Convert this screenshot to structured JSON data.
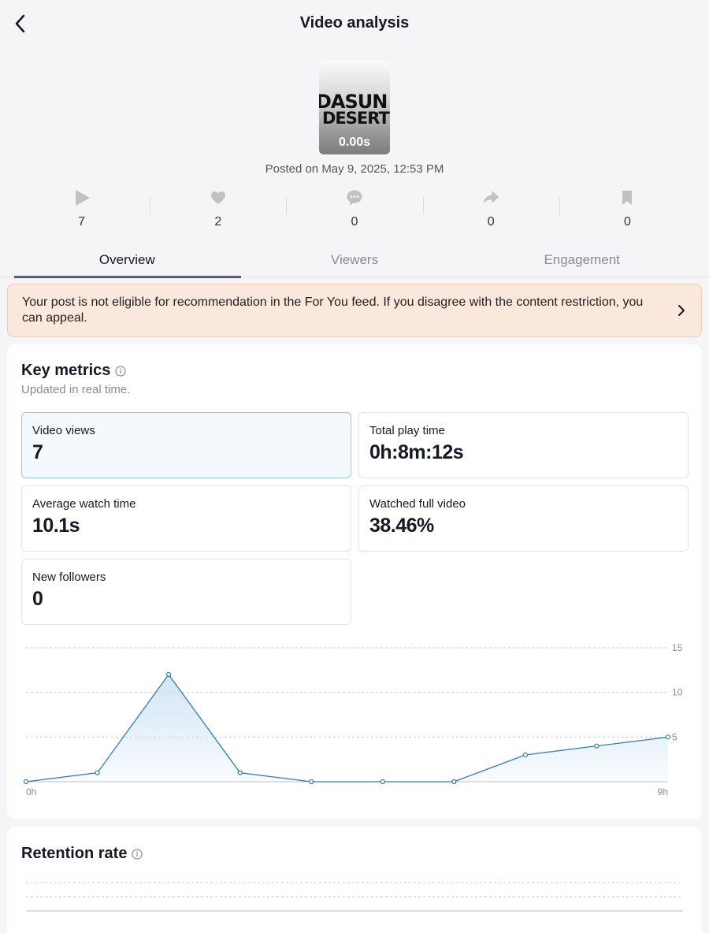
{
  "header": {
    "title": "Video analysis"
  },
  "video": {
    "thumb_line1": "DASUN",
    "thumb_line2": "DESERT",
    "duration": "0.00s",
    "posted": "Posted on May 9, 2025, 12:53 PM"
  },
  "stats": [
    {
      "icon": "play-icon",
      "value": "7"
    },
    {
      "icon": "heart-icon",
      "value": "2"
    },
    {
      "icon": "comment-icon",
      "value": "0"
    },
    {
      "icon": "share-icon",
      "value": "0"
    },
    {
      "icon": "bookmark-icon",
      "value": "0"
    }
  ],
  "tabs": [
    {
      "label": "Overview",
      "active": true
    },
    {
      "label": "Viewers"
    },
    {
      "label": "Engagement"
    }
  ],
  "notice": {
    "text": "Your post is not eligible for recommendation in the For You feed. If you disagree with the content restriction, you can appeal."
  },
  "key_metrics": {
    "title": "Key metrics",
    "subtitle": "Updated in real time.",
    "items": [
      {
        "label": "Video views",
        "value": "7"
      },
      {
        "label": "Total play time",
        "value": "0h:8m:12s"
      },
      {
        "label": "Average watch time",
        "value": "10.1s"
      },
      {
        "label": "Watched full video",
        "value": "38.46%"
      },
      {
        "label": "New followers",
        "value": "0"
      }
    ]
  },
  "chart_data": {
    "type": "area",
    "x_tick_labels": [
      "0h",
      "9h"
    ],
    "y_ticks": [
      5,
      10,
      15
    ],
    "ylim": [
      0,
      15
    ],
    "grid": true,
    "values": [
      0,
      1,
      12,
      1,
      0,
      0,
      0,
      3,
      4,
      5
    ],
    "colors": {
      "line": "#2e7cb0",
      "fill": "#cfe4f4",
      "grid": "#c9c9c9"
    }
  },
  "retention": {
    "title": "Retention rate"
  }
}
